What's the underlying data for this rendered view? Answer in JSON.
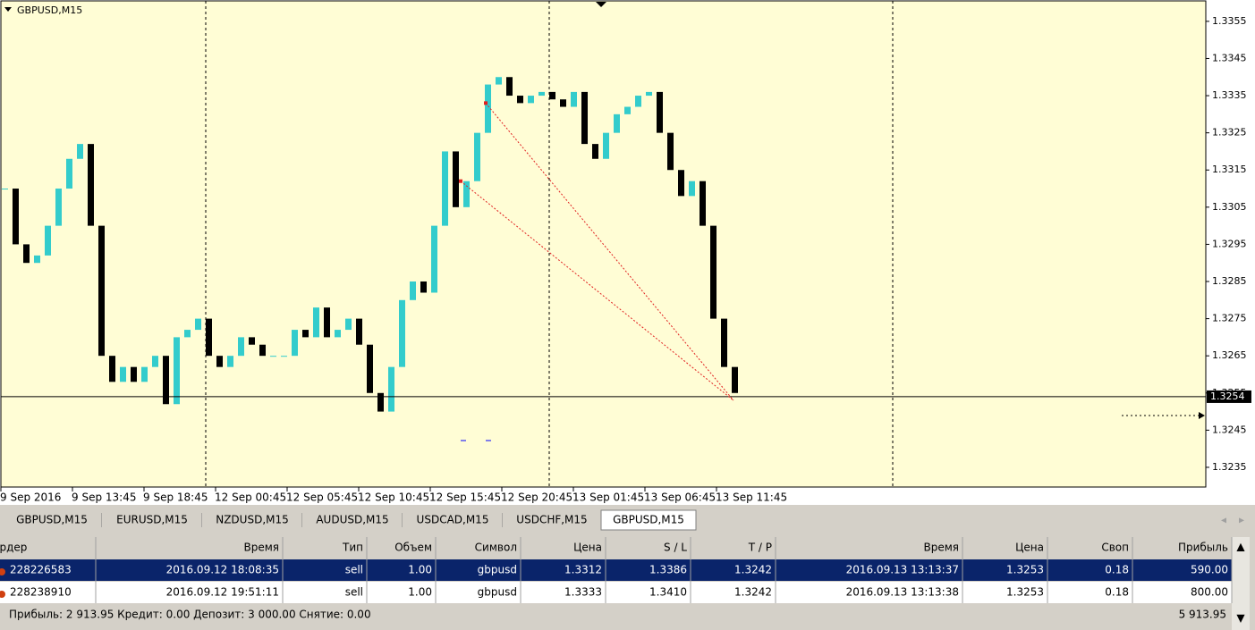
{
  "chart": {
    "type": "candlestick",
    "symbol_label": "GBPUSD,M15",
    "closes": [
      1.331,
      1.3295,
      1.329,
      1.3292,
      1.33,
      1.331,
      1.3318,
      1.3322,
      1.33,
      1.3265,
      1.3258,
      1.3262,
      1.3258,
      1.3262,
      1.3265,
      1.3252,
      1.327,
      1.3272,
      1.3275,
      1.3265,
      1.3262,
      1.3265,
      1.327,
      1.3268,
      1.3265,
      1.3265,
      1.3265,
      1.3272,
      1.327,
      1.3278,
      1.327,
      1.3272,
      1.3275,
      1.3268,
      1.3255,
      1.325,
      1.3262,
      1.328,
      1.3285,
      1.3282,
      1.33,
      1.332,
      1.3305,
      1.3312,
      1.3325,
      1.3338,
      1.334,
      1.3335,
      1.3333,
      1.3335,
      1.3336,
      1.3334,
      1.3332,
      1.3336,
      1.3322,
      1.3318,
      1.3325,
      1.333,
      1.3332,
      1.3335,
      1.3336,
      1.3325,
      1.3315,
      1.3308,
      1.3312,
      1.33,
      1.3275,
      1.3262,
      1.3255
    ],
    "ylim": [
      1.32297,
      1.33605
    ],
    "yticks": [
      1.3355,
      1.3345,
      1.3335,
      1.3325,
      1.3315,
      1.3305,
      1.3295,
      1.3285,
      1.3275,
      1.3265,
      1.3255,
      1.3245,
      1.3235
    ],
    "xtick_labels": [
      "9 Sep 2016",
      "9 Sep 13:45",
      "9 Sep 18:45",
      "12 Sep 00:45",
      "12 Sep 05:45",
      "12 Sep 10:45",
      "12 Sep 15:45",
      "12 Sep 20:45",
      "13 Sep 01:45",
      "13 Sep 06:45",
      "13 Sep 11:45"
    ],
    "bid": 1.3254,
    "bull_color": "#33cccc",
    "bear_color": "#000000"
  },
  "tabs": [
    "GBPUSD,M15",
    "EURUSD,M15",
    "NZDUSD,M15",
    "AUDUSD,M15",
    "USDCAD,M15",
    "USDCHF,M15",
    "GBPUSD,M15"
  ],
  "table": {
    "headers": [
      "Ордер",
      "Время",
      "Тип",
      "Объем",
      "Символ",
      "Цена",
      "S / L",
      "T / P",
      "Время",
      "Цена",
      "Своп",
      "Прибыль"
    ],
    "rows": [
      [
        "228226583",
        "2016.09.12 18:08:35",
        "sell",
        "1.00",
        "gbpusd",
        "1.3312",
        "1.3386",
        "1.3242",
        "2016.09.13 13:13:37",
        "1.3253",
        "0.18",
        "590.00"
      ],
      [
        "228238910",
        "2016.09.12 19:51:11",
        "sell",
        "1.00",
        "gbpusd",
        "1.3333",
        "1.3410",
        "1.3242",
        "2016.09.13 13:13:38",
        "1.3253",
        "0.18",
        "800.00"
      ]
    ]
  },
  "footer": {
    "summary": "Прибыль: 2 913.95  Кредит: 0.00  Депозит: 3 000.00  Снятие: 0.00",
    "total": "5 913.95"
  }
}
